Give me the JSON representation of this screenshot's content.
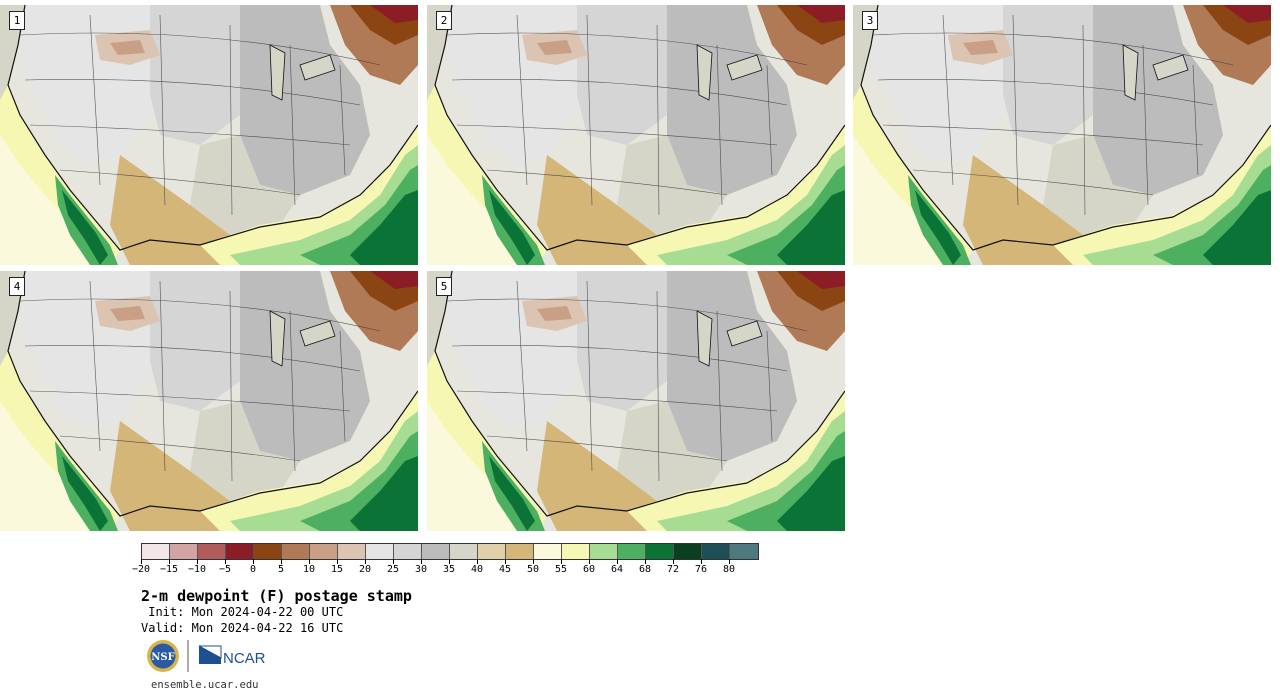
{
  "panels": [
    {
      "number": "1"
    },
    {
      "number": "2"
    },
    {
      "number": "3"
    },
    {
      "number": "4"
    },
    {
      "number": "5"
    }
  ],
  "legend": {
    "colors": [
      "#f3e6e6",
      "#d4a3a3",
      "#b25b5b",
      "#8c1c25",
      "#8b4513",
      "#b07a57",
      "#c9a085",
      "#dcc4b2",
      "#e5e5e5",
      "#d5d5d5",
      "#bcbcbc",
      "#d6d6c8",
      "#e0d1a8",
      "#d3b678",
      "#fbf9dc",
      "#f7f7b4",
      "#a7dd93",
      "#4cb060",
      "#0b7335",
      "#0a3f22",
      "#1f4f56",
      "#4e7a7f"
    ],
    "tick_labels": [
      "−20",
      "−15",
      "−10",
      "−5",
      "0",
      "5",
      "10",
      "15",
      "20",
      "25",
      "30",
      "35",
      "40",
      "45",
      "50",
      "55",
      "60",
      "64",
      "68",
      "72",
      "76",
      "80"
    ]
  },
  "title": "2-m dewpoint (F) postage stamp",
  "init_text": " Init: Mon 2024-04-22 00 UTC",
  "valid_text": "Valid: Mon 2024-04-22 16 UTC",
  "logos": {
    "nsf": "NSF",
    "ncar": "NCAR"
  },
  "url": "ensemble.ucar.edu"
}
